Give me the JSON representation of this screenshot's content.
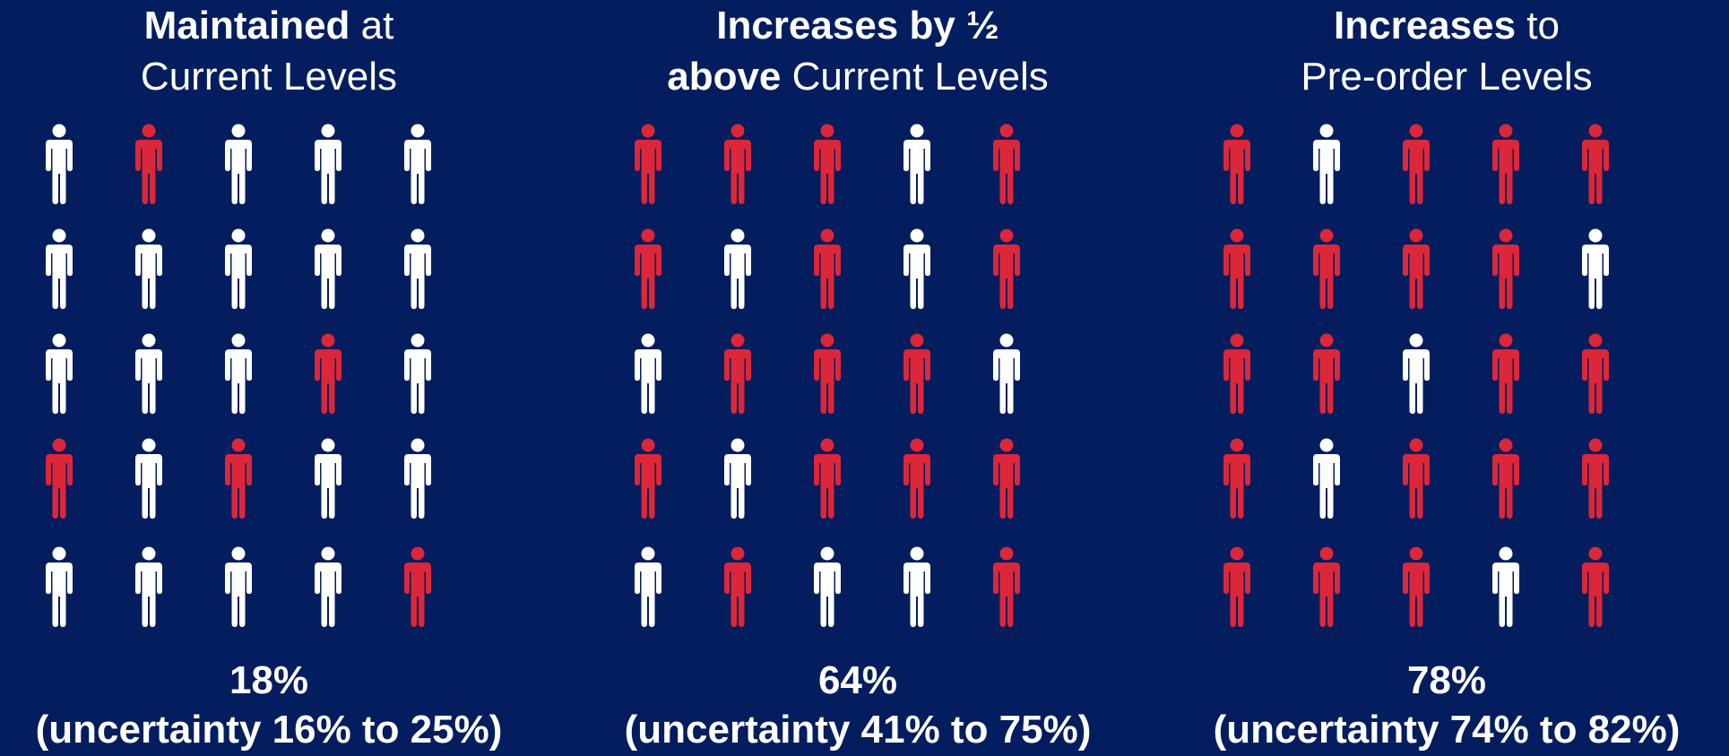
{
  "colors": {
    "background": "#031d5e",
    "highlight": "#db2739",
    "neutral": "#ffffff"
  },
  "icon": "person-icon",
  "chart_data": [
    {
      "type": "pictogram",
      "title_bold": "Maintained",
      "title_rest": " at",
      "title_line2_bold": "",
      "title_line2_rest": "Current Levels",
      "value_percent": 18,
      "value_label": "18%",
      "uncertainty_label": "(uncertainty 16% to 25%)",
      "uncertainty_range": [
        16,
        25
      ],
      "grid": [
        [
          0,
          1,
          0,
          0,
          0
        ],
        [
          0,
          0,
          0,
          0,
          0
        ],
        [
          0,
          0,
          0,
          1,
          0
        ],
        [
          1,
          0,
          1,
          0,
          0
        ],
        [
          0,
          0,
          0,
          0,
          1
        ]
      ]
    },
    {
      "type": "pictogram",
      "title_bold": "Increases by ½",
      "title_rest": "",
      "title_line2_bold": "above",
      "title_line2_rest": " Current Levels",
      "value_percent": 64,
      "value_label": "64%",
      "uncertainty_label": "(uncertainty 41% to 75%)",
      "uncertainty_range": [
        41,
        75
      ],
      "grid": [
        [
          1,
          1,
          1,
          0,
          1
        ],
        [
          1,
          0,
          1,
          0,
          1
        ],
        [
          0,
          1,
          1,
          1,
          0
        ],
        [
          1,
          0,
          1,
          1,
          1
        ],
        [
          0,
          1,
          0,
          0,
          1
        ]
      ]
    },
    {
      "type": "pictogram",
      "title_bold": "Increases",
      "title_rest": " to",
      "title_line2_bold": "",
      "title_line2_rest": "Pre-order Levels",
      "value_percent": 78,
      "value_label": "78%",
      "uncertainty_label": "(uncertainty 74% to 82%)",
      "uncertainty_range": [
        74,
        82
      ],
      "grid": [
        [
          1,
          0,
          1,
          1,
          1
        ],
        [
          1,
          1,
          1,
          1,
          0
        ],
        [
          1,
          1,
          0,
          1,
          1
        ],
        [
          1,
          0,
          1,
          1,
          1
        ],
        [
          1,
          1,
          1,
          0,
          1
        ]
      ]
    }
  ]
}
